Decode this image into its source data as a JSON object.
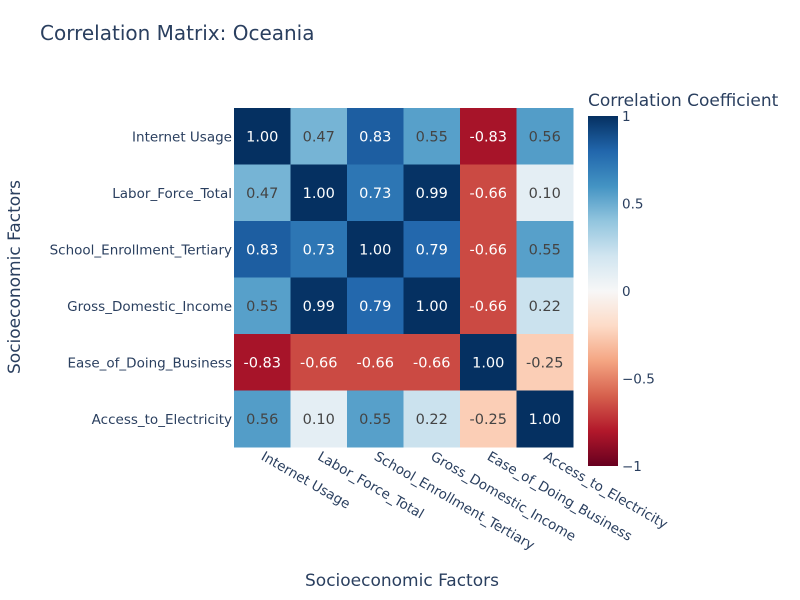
{
  "chart_data": {
    "type": "heatmap",
    "title": "Correlation Matrix: Oceania",
    "xlabel": "Socioeconomic Factors",
    "ylabel": "Socioeconomic Factors",
    "x_categories": [
      "Internet Usage",
      "Labor_Force_Total",
      "School_Enrollment_Tertiary",
      "Gross_Domestic_Income",
      "Ease_of_Doing_Business",
      "Access_to_Electricity"
    ],
    "y_categories": [
      "Internet Usage",
      "Labor_Force_Total",
      "School_Enrollment_Tertiary",
      "Gross_Domestic_Income",
      "Ease_of_Doing_Business",
      "Access_to_Electricity"
    ],
    "values": [
      [
        1.0,
        0.47,
        0.83,
        0.55,
        -0.83,
        0.56
      ],
      [
        0.47,
        1.0,
        0.73,
        0.99,
        -0.66,
        0.1
      ],
      [
        0.83,
        0.73,
        1.0,
        0.79,
        -0.66,
        0.55
      ],
      [
        0.55,
        0.99,
        0.79,
        1.0,
        -0.66,
        0.22
      ],
      [
        -0.83,
        -0.66,
        -0.66,
        -0.66,
        1.0,
        -0.25
      ],
      [
        0.56,
        0.1,
        0.55,
        0.22,
        -0.25,
        1.0
      ]
    ],
    "value_labels": [
      [
        "1.00",
        "0.47",
        "0.83",
        "0.55",
        "-0.83",
        "0.56"
      ],
      [
        "0.47",
        "1.00",
        "0.73",
        "0.99",
        "-0.66",
        "0.10"
      ],
      [
        "0.83",
        "0.73",
        "1.00",
        "0.79",
        "-0.66",
        "0.55"
      ],
      [
        "0.55",
        "0.99",
        "0.79",
        "1.00",
        "-0.66",
        "0.22"
      ],
      [
        "-0.83",
        "-0.66",
        "-0.66",
        "-0.66",
        "1.00",
        "-0.25"
      ],
      [
        "0.56",
        "0.10",
        "0.55",
        "0.22",
        "-0.25",
        "1.00"
      ]
    ],
    "colorbar": {
      "title": "Correlation Coefficient",
      "range": [
        -1,
        1
      ],
      "tick_values": [
        1,
        0.5,
        0,
        -0.5,
        -1
      ],
      "tick_labels": [
        "1",
        "0.5",
        "0",
        "−0.5",
        "−1"
      ]
    },
    "colorscale": "RdBu"
  }
}
